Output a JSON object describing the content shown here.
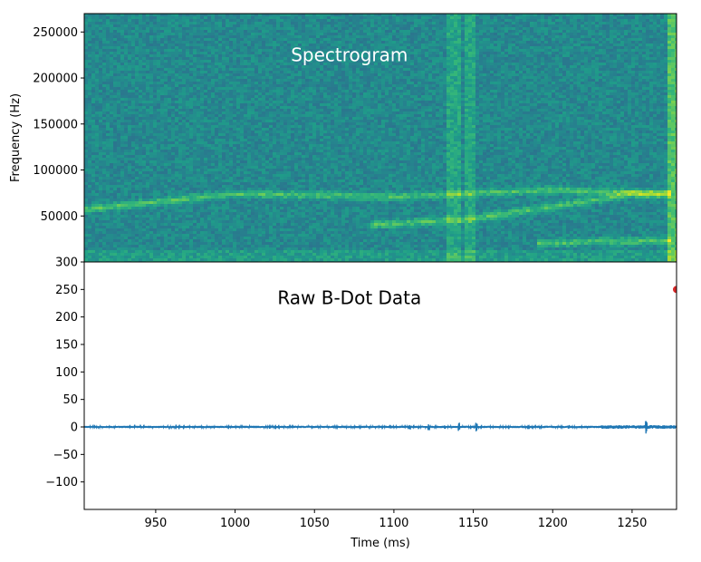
{
  "chart_data": [
    {
      "type": "heatmap",
      "title": "Spectrogram",
      "xlabel": "",
      "ylabel": "Frequency (Hz)",
      "xlim": [
        905,
        1278
      ],
      "ylim": [
        0,
        270000
      ],
      "y_ticks": [
        50000,
        100000,
        150000,
        200000,
        250000
      ],
      "colormap": "viridis",
      "features": [
        {
          "label": "",
          "points": [
            [
              905,
              57000
            ],
            [
              1000,
              74000
            ],
            [
              1100,
              71000
            ],
            [
              1200,
              78000
            ],
            [
              1275,
              74000
            ]
          ]
        },
        {
          "label": "",
          "points": [
            [
              1085,
              40000
            ],
            [
              1150,
              47000
            ],
            [
              1200,
              60000
            ],
            [
              1250,
              74000
            ],
            [
              1275,
              74000
            ]
          ]
        },
        {
          "label": "",
          "points": [
            [
              1190,
              20000
            ],
            [
              1230,
              22000
            ],
            [
              1275,
              23000
            ]
          ]
        }
      ]
    },
    {
      "type": "line",
      "title": "Raw B-Dot Data",
      "xlabel": "Time (ms)",
      "ylabel": "",
      "xlim": [
        905,
        1278
      ],
      "ylim": [
        -150,
        300
      ],
      "x_ticks": [
        950,
        1000,
        1050,
        1100,
        1150,
        1200,
        1250
      ],
      "y_ticks": [
        -100,
        -50,
        0,
        50,
        100,
        150,
        200,
        250,
        300
      ],
      "series": [
        {
          "color": "#1f77b4",
          "baseline": 0,
          "noise_amplitude": 2,
          "spikes": [
            [
              1022,
              4
            ],
            [
              1062,
              3
            ],
            [
              1098,
              4
            ],
            [
              1110,
              5
            ],
            [
              1122,
              6
            ],
            [
              1132,
              5
            ],
            [
              1141,
              8
            ],
            [
              1152,
              10
            ],
            [
              1210,
              4
            ],
            [
              1259,
              12
            ]
          ]
        }
      ],
      "marker": {
        "x": 1278,
        "y": 250,
        "color": "#d62728"
      }
    }
  ]
}
